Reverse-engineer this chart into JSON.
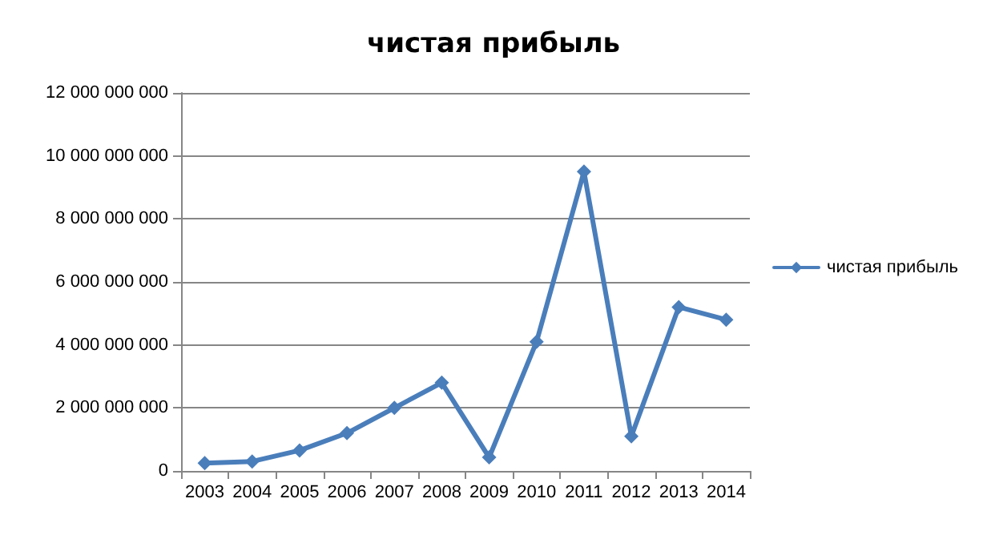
{
  "chart_data": {
    "type": "line",
    "title": "чистая прибыль",
    "categories": [
      "2003",
      "2004",
      "2005",
      "2006",
      "2007",
      "2008",
      "2009",
      "2010",
      "2011",
      "2012",
      "2013",
      "2014"
    ],
    "series": [
      {
        "name": "чистая прибыль",
        "color": "#4a7ebb",
        "values": [
          250000000,
          300000000,
          650000000,
          1200000000,
          2000000000,
          2800000000,
          430000000,
          4100000000,
          9500000000,
          1100000000,
          5200000000,
          4800000000
        ]
      }
    ],
    "ylim": [
      0,
      12000000000
    ],
    "yticks": [
      0,
      {
        "value": 2000000000,
        "label": "2 000 000 000"
      },
      {
        "value": 4000000000,
        "label": "4 000 000 000"
      },
      {
        "value": 6000000000,
        "label": "6 000 000 000"
      },
      {
        "value": 8000000000,
        "label": "8 000 000 000"
      },
      {
        "value": 10000000000,
        "label": "10 000 000 000"
      },
      {
        "value": 12000000000,
        "label": "12 000 000 000"
      }
    ],
    "grid": "y",
    "legend": "right",
    "marker": "diamond",
    "line_style": "solid"
  }
}
